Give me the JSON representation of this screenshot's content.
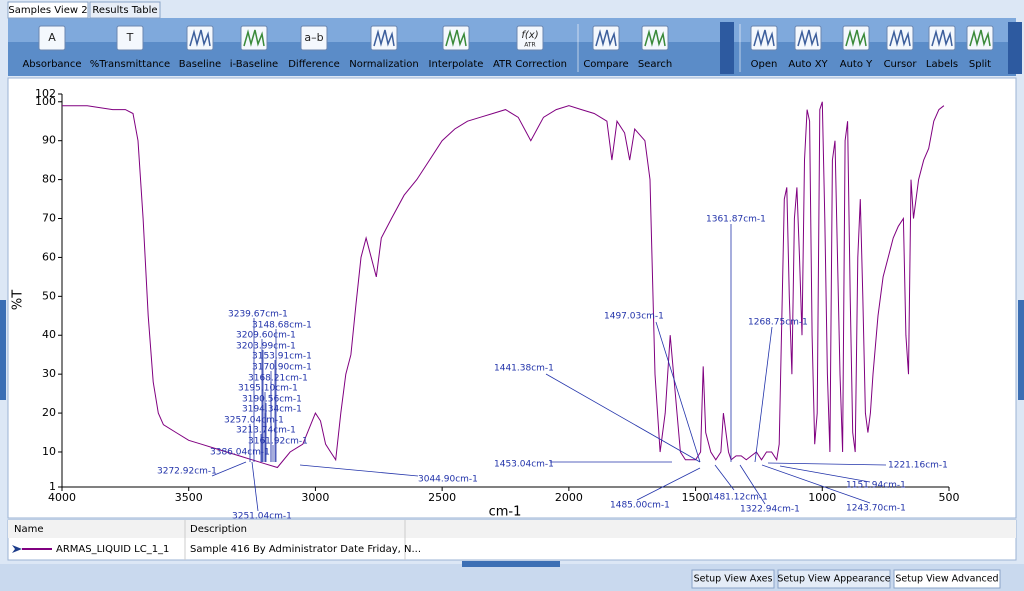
{
  "tabs": [
    "Samples View 2",
    "Results Table"
  ],
  "toolbar": {
    "buttons": [
      {
        "label": "Absorbance",
        "icon_text": "A"
      },
      {
        "label": "%Transmittance",
        "icon_text": "T"
      },
      {
        "label": "Baseline"
      },
      {
        "label": "i-Baseline"
      },
      {
        "label": "Difference",
        "icon_text": "a–b"
      },
      {
        "label": "Normalization"
      },
      {
        "label": "Interpolate"
      },
      {
        "label": "ATR Correction",
        "icon_text": "f(x)",
        "icon_subtext": "ATR"
      },
      {
        "label": "Compare"
      },
      {
        "label": "Search"
      },
      {
        "label": "Open"
      },
      {
        "label": "Auto XY"
      },
      {
        "label": "Auto Y"
      },
      {
        "label": "Cursor"
      },
      {
        "label": "Labels"
      },
      {
        "label": "Split"
      }
    ]
  },
  "chart_data": {
    "type": "line",
    "x_label": "cm-1",
    "y_label": "%T",
    "xlim": [
      4000,
      500
    ],
    "ylim": [
      1,
      102
    ],
    "xticks": [
      4000,
      3500,
      3000,
      2500,
      2000,
      1500,
      1000,
      500
    ],
    "yticks": [
      1,
      10,
      20,
      30,
      40,
      50,
      60,
      70,
      80,
      90,
      100,
      102
    ],
    "series": [
      {
        "name": "ARMAS_LIQUID LC_1_1",
        "color": "#800080",
        "x": [
          4000,
          3900,
          3800,
          3750,
          3720,
          3700,
          3680,
          3660,
          3640,
          3620,
          3600,
          3550,
          3500,
          3450,
          3400,
          3350,
          3300,
          3250,
          3200,
          3150,
          3100,
          3050,
          3000,
          2980,
          2960,
          2940,
          2920,
          2900,
          2880,
          2860,
          2840,
          2820,
          2800,
          2780,
          2760,
          2740,
          2700,
          2650,
          2600,
          2550,
          2500,
          2450,
          2400,
          2350,
          2300,
          2250,
          2200,
          2150,
          2100,
          2050,
          2000,
          1950,
          1900,
          1850,
          1830,
          1810,
          1780,
          1760,
          1740,
          1700,
          1680,
          1660,
          1640,
          1620,
          1600,
          1580,
          1560,
          1540,
          1520,
          1500,
          1480,
          1470,
          1460,
          1440,
          1420,
          1400,
          1390,
          1370,
          1360,
          1340,
          1320,
          1300,
          1280,
          1260,
          1240,
          1220,
          1200,
          1180,
          1170,
          1150,
          1140,
          1130,
          1120,
          1110,
          1100,
          1090,
          1080,
          1070,
          1060,
          1050,
          1040,
          1030,
          1020,
          1010,
          1000,
          990,
          980,
          970,
          960,
          950,
          940,
          930,
          920,
          910,
          900,
          890,
          880,
          870,
          860,
          850,
          840,
          830,
          820,
          810,
          800,
          780,
          760,
          740,
          720,
          700,
          680,
          670,
          660,
          650,
          640,
          620,
          600,
          580,
          560,
          540,
          520
        ],
        "values": [
          99,
          99,
          98,
          98,
          97,
          90,
          70,
          45,
          28,
          20,
          17,
          15,
          13,
          12,
          11,
          10,
          9,
          8,
          7,
          6,
          10,
          12,
          20,
          18,
          12,
          10,
          8,
          20,
          30,
          35,
          48,
          60,
          65,
          60,
          55,
          65,
          70,
          76,
          80,
          85,
          90,
          93,
          95,
          96,
          97,
          98,
          96,
          90,
          96,
          98,
          99,
          98,
          97,
          95,
          85,
          95,
          92,
          85,
          93,
          90,
          80,
          30,
          10,
          20,
          40,
          25,
          10,
          8,
          8,
          8,
          10,
          32,
          15,
          10,
          8,
          10,
          20,
          10,
          8,
          9,
          9,
          8,
          9,
          10,
          8,
          10,
          10,
          8,
          12,
          75,
          78,
          50,
          30,
          70,
          78,
          60,
          40,
          85,
          98,
          95,
          40,
          12,
          20,
          98,
          100,
          70,
          30,
          10,
          85,
          90,
          60,
          30,
          10,
          90,
          95,
          50,
          15,
          10,
          60,
          75,
          50,
          20,
          15,
          20,
          30,
          45,
          55,
          60,
          65,
          68,
          70,
          40,
          30,
          80,
          70,
          80,
          85,
          88,
          95,
          98,
          99
        ]
      }
    ],
    "annotations": [
      "3239.67cm-1",
      "3148.68cm-1",
      "3209.60cm-1",
      "3203.99cm-1",
      "3153.91cm-1",
      "3170.90cm-1",
      "3168.21cm-1",
      "3195.10cm-1",
      "3190.56cm-1",
      "3194.34cm-1",
      "3257.04cm-1",
      "3213.74cm-1",
      "3161.92cm-1",
      "3386.04cm-1",
      "3272.92cm-1",
      "3251.04cm-1",
      "3044.90cm-1",
      "1441.38cm-1",
      "1497.03cm-1",
      "1361.87cm-1",
      "1268.75cm-1",
      "1453.04cm-1",
      "1485.00cm-1",
      "1481.12cm-1",
      "1322.94cm-1",
      "1243.70cm-1",
      "1151.94cm-1",
      "1221.16cm-1"
    ]
  },
  "legend_table": {
    "headers": [
      "Name",
      "Description"
    ],
    "description": "Sample 416 By Administrator Date Friday, N..."
  },
  "bottom_buttons": [
    "Setup View Axes",
    "Setup View Appearance",
    "Setup View Advanced"
  ]
}
